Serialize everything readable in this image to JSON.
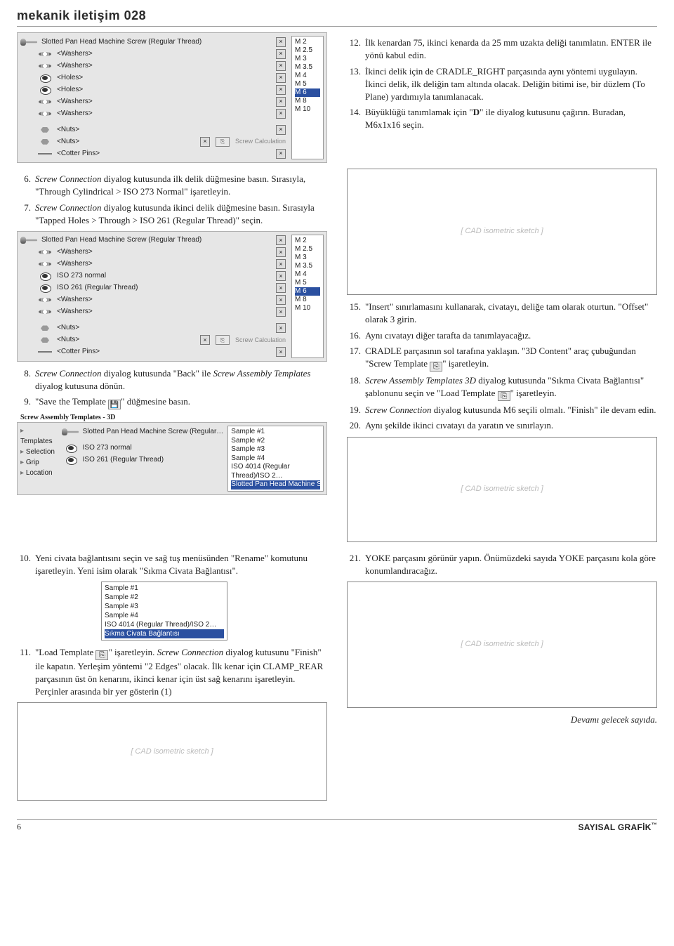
{
  "header": {
    "title": "mekanik iletişim 028"
  },
  "tree_panel_top": {
    "rows": [
      {
        "icon": "screw",
        "indent": 0,
        "label": "Slotted Pan Head Machine Screw (Regular Thread)",
        "closeable": true
      },
      {
        "icon": "washer",
        "indent": 1,
        "label": "<Washers>",
        "closeable": true
      },
      {
        "icon": "washer",
        "indent": 1,
        "label": "<Washers>",
        "closeable": true
      },
      {
        "icon": "hole",
        "indent": 1,
        "label": "<Holes>",
        "closeable": true
      },
      {
        "icon": "hole",
        "indent": 1,
        "label": "<Holes>",
        "closeable": true
      },
      {
        "icon": "washer",
        "indent": 1,
        "label": "<Washers>",
        "closeable": true
      },
      {
        "icon": "washer",
        "indent": 1,
        "label": "<Washers>",
        "closeable": true
      },
      {
        "sep": true
      },
      {
        "icon": "nut",
        "indent": 1,
        "label": "<Nuts>",
        "closeable": true
      },
      {
        "icon": "nut",
        "indent": 1,
        "label": "<Nuts>",
        "closeable": true,
        "calc": "Screw Calculation"
      },
      {
        "icon": "cotter",
        "indent": 1,
        "label": "<Cotter Pins>",
        "closeable": true
      }
    ],
    "sizes": [
      "M 2",
      "M 2.5",
      "M 3",
      "M 3.5",
      "M 4",
      "M 5",
      "M 6",
      "M 8",
      "M 10"
    ],
    "size_selected": 6
  },
  "steps_left_a": [
    {
      "num": "6.",
      "text": "<i>Screw Connection</i> diyalog kutusunda ilk delik düğmesine basın. Sırasıyla, \"Through Cylindrical > ISO 273 Normal\" işaretleyin."
    },
    {
      "num": "7.",
      "text": "<i>Screw Connection</i> diyalog kutusunda ikinci delik düğmesine basın. Sırasıyla \"Tapped Holes > Through > ISO 261 (Regular Thread)\" seçin."
    }
  ],
  "tree_panel_mid": {
    "rows": [
      {
        "icon": "screw",
        "indent": 0,
        "label": "Slotted Pan Head Machine Screw (Regular Thread)",
        "closeable": true
      },
      {
        "icon": "washer",
        "indent": 1,
        "label": "<Washers>",
        "closeable": true
      },
      {
        "icon": "washer",
        "indent": 1,
        "label": "<Washers>",
        "closeable": true
      },
      {
        "icon": "hole",
        "indent": 1,
        "label": "ISO 273 normal",
        "closeable": true
      },
      {
        "icon": "hole",
        "indent": 1,
        "label": "ISO 261 (Regular Thread)",
        "closeable": true
      },
      {
        "icon": "washer",
        "indent": 1,
        "label": "<Washers>",
        "closeable": true
      },
      {
        "icon": "washer",
        "indent": 1,
        "label": "<Washers>",
        "closeable": true
      },
      {
        "sep": true
      },
      {
        "icon": "nut",
        "indent": 1,
        "label": "<Nuts>",
        "closeable": true
      },
      {
        "icon": "nut",
        "indent": 1,
        "label": "<Nuts>",
        "closeable": true,
        "calc": "Screw Calculation"
      },
      {
        "icon": "cotter",
        "indent": 1,
        "label": "<Cotter Pins>",
        "closeable": true
      }
    ],
    "sizes": [
      "M 2",
      "M 2.5",
      "M 3",
      "M 3.5",
      "M 4",
      "M 5",
      "M 6",
      "M 8",
      "M 10"
    ],
    "size_selected": 6
  },
  "steps_left_b": [
    {
      "num": "8.",
      "text": "<i>Screw Connection</i> diyalog kutusunda \"Back\" ile <i>Screw Assembly Templates</i> diyalog kutusuna dönün."
    },
    {
      "num": "9.",
      "text": "\"Save the Template <span class='icon-inline save'></span>\" düğmesine basın."
    }
  ],
  "panel_3d": {
    "title": "Screw Assembly Templates - 3D",
    "nav": [
      "Templates",
      "Selection",
      "Grip",
      "Location"
    ],
    "rows": [
      {
        "icon": "screw",
        "label": "Slotted Pan Head Machine Screw (Regular…"
      },
      {
        "sep": true
      },
      {
        "icon": "hole",
        "label": "ISO 273 normal"
      },
      {
        "icon": "hole",
        "label": "ISO 261 (Regular Thread)"
      }
    ],
    "rightlist": [
      "Sample #1",
      "Sample #2",
      "Sample #3",
      "Sample #4",
      "ISO 4014 (Regular Thread)/ISO 2…",
      "Slotted Pan Head Machine Screw"
    ],
    "right_selected": 5
  },
  "steps_left_c": [
    {
      "num": "10.",
      "text": "Yeni civata bağlantısını seçin ve sağ tuş menüsünden \"Rename\" komutunu işaretleyin. Yeni isim olarak \"Sıkma Civata Bağlantısı\"."
    }
  ],
  "samples_box": {
    "items": [
      "Sample #1",
      "Sample #2",
      "Sample #3",
      "Sample #4",
      "ISO 4014 (Regular Thread)/ISO 2…",
      "Sıkma Civata Bağlantısı"
    ],
    "selected": 5
  },
  "steps_left_d": [
    {
      "num": "11.",
      "text": "\"Load Template <span class='icon-inline template'></span>\" işaretleyin. <i>Screw Connection</i> diyalog kutusunu \"Finish\" ile kapatın. Yerleşim yöntemi \"2 Edges\" olacak. İlk kenar için CLAMP_REAR parçasının üst ön kenarını, ikinci kenar için üst sağ kenarını işaretleyin. Perçinler arasında bir yer gösterin (1)"
    }
  ],
  "steps_right_a": [
    {
      "num": "12.",
      "text": "İlk kenardan 75, ikinci kenarda da 25 mm uzakta deliği tanımlatın. ENTER ile yönü kabul edin."
    },
    {
      "num": "13.",
      "text": "İkinci delik için de CRADLE_RIGHT parçasında aynı yöntemi uygulayın. İkinci delik, ilk deliğin tam altında olacak. Deliğin bitimi ise, bir düzlem (To Plane) yardımıyla tanımlanacak."
    },
    {
      "num": "14.",
      "text": "Büyüklüğü tanımlamak için \"<b>D</b>\" ile diyalog kutusunu çağırın. Buradan, M6x1x16 seçin."
    }
  ],
  "steps_right_b": [
    {
      "num": "15.",
      "text": "\"Insert\" sınırlamasını kullanarak, civatayı, deliğe tam olarak oturtun. \"Offset\" olarak 3 girin."
    },
    {
      "num": "16.",
      "text": "Aynı cıvatayı diğer tarafta da tanımlayacağız."
    },
    {
      "num": "17.",
      "text": "CRADLE parçasının sol tarafına yaklaşın. \"3D Content\" araç çubuğundan \"Screw Template <span class='icon-inline template'></span>\" işaretleyin."
    },
    {
      "num": "18.",
      "text": "<i>Screw Assembly Templates 3D</i> diyalog kutusunda \"Sıkma Civata Bağlantısı\" şablonunu seçin ve \"Load Template <span class='icon-inline template'></span>\" işaretleyin."
    },
    {
      "num": "19.",
      "text": "<i>Screw Connection</i> diyalog kutusunda M6 seçili olmalı. \"Finish\" ile devam edin."
    },
    {
      "num": "20.",
      "text": "Aynı şekilde ikinci cıvatayı da yaratın ve sınırlayın."
    }
  ],
  "steps_right_c": [
    {
      "num": "21.",
      "text": "YOKE parçasını görünür yapın. Önümüzdeki sayıda YOKE parçasını kola göre konumlandıracağız."
    }
  ],
  "continuation": "Devamı gelecek sayıda.",
  "footer": {
    "page": "6",
    "brand": "SAYISAL GRAFİK",
    "tm": "™"
  },
  "cad_placeholder": "[ CAD isometric sketch ]"
}
